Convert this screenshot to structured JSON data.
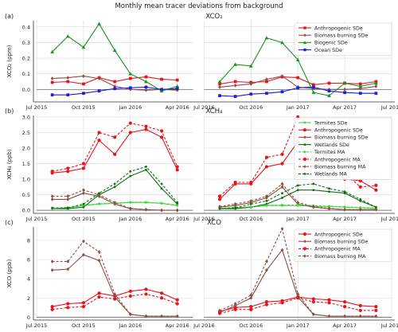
{
  "figure": {
    "title": "Monthly mean tracer deviations from background"
  },
  "chart_data": [
    {
      "type": "line",
      "panel_label": "(a)",
      "title": "XCO₂",
      "ylabel": "XCO₂ (ppm)",
      "ylim": [
        -0.08,
        0.44
      ],
      "yticks": [
        0.0,
        0.1,
        0.2,
        0.3,
        0.4
      ],
      "ytick_labels": [
        "0.0",
        "0.1",
        "0.2",
        "0.3",
        "0.4"
      ],
      "xaxis_segments": [
        {
          "range": [
            "2015-07",
            "2016-05"
          ],
          "ticks": [
            "Jul 2015",
            "Oct 2015",
            "Jan 2016",
            "Apr 2016"
          ]
        },
        {
          "range": [
            "2016-07",
            "2017-07"
          ],
          "ticks": [
            "Jul 2016",
            "Oct 2016",
            "Jan 2017",
            "Apr 2017",
            "Jul 2017"
          ]
        }
      ],
      "grid": true,
      "legend_position": "upper-right",
      "series": [
        {
          "name": "Anthropogenic SDe",
          "color": "#e8141c",
          "marker": "square",
          "dashed": false,
          "x": [
            "2015-08",
            "2015-09",
            "2015-10",
            "2015-11",
            "2015-12",
            "2016-01",
            "2016-02",
            "2016-03",
            "2016-04",
            "2016-08",
            "2016-09",
            "2016-10",
            "2016-11",
            "2016-12",
            "2017-01",
            "2017-02",
            "2017-03",
            "2017-04",
            "2017-05",
            "2017-06"
          ],
          "values": [
            0.045,
            0.05,
            0.035,
            0.075,
            0.05,
            0.07,
            0.08,
            0.065,
            0.06,
            0.035,
            0.05,
            0.045,
            0.05,
            0.08,
            0.075,
            0.03,
            0.04,
            0.04,
            0.035,
            0.05
          ]
        },
        {
          "name": "Biomass burning SDe",
          "color": "#8b4f43",
          "marker": "diamond",
          "dashed": false,
          "x": [
            "2015-08",
            "2015-09",
            "2015-10",
            "2015-11",
            "2015-12",
            "2016-01",
            "2016-02",
            "2016-03",
            "2016-04",
            "2016-08",
            "2016-09",
            "2016-10",
            "2016-11",
            "2016-12",
            "2017-01",
            "2017-02",
            "2017-03",
            "2017-04",
            "2017-05",
            "2017-06"
          ],
          "values": [
            0.07,
            0.075,
            0.085,
            0.07,
            0.02,
            0.0,
            -0.005,
            0.0,
            -0.005,
            0.015,
            0.025,
            0.035,
            0.065,
            0.085,
            0.015,
            0.005,
            0.0,
            0.0,
            0.005,
            0.02
          ]
        },
        {
          "name": "Biogenic SDe",
          "color": "#16961c",
          "marker": "triangle",
          "dashed": false,
          "x": [
            "2015-08",
            "2015-09",
            "2015-10",
            "2015-11",
            "2015-12",
            "2016-01",
            "2016-02",
            "2016-03",
            "2016-04",
            "2016-08",
            "2016-09",
            "2016-10",
            "2016-11",
            "2016-12",
            "2017-01",
            "2017-02",
            "2017-03",
            "2017-04",
            "2017-05",
            "2017-06"
          ],
          "values": [
            0.24,
            0.34,
            0.27,
            0.42,
            0.25,
            0.1,
            0.05,
            -0.01,
            0.02,
            0.05,
            0.16,
            0.15,
            0.33,
            0.3,
            0.19,
            -0.02,
            -0.04,
            0.04,
            0.02,
            0.04
          ]
        },
        {
          "name": "Ocean SDe",
          "color": "#1e1ed8",
          "marker": "square",
          "dashed": false,
          "x": [
            "2015-08",
            "2015-09",
            "2015-10",
            "2015-11",
            "2015-12",
            "2016-01",
            "2016-02",
            "2016-03",
            "2016-04",
            "2016-08",
            "2016-09",
            "2016-10",
            "2016-11",
            "2016-12",
            "2017-01",
            "2017-02",
            "2017-03",
            "2017-04",
            "2017-05",
            "2017-06"
          ],
          "values": [
            -0.035,
            -0.035,
            -0.025,
            -0.01,
            0.005,
            0.01,
            0.015,
            0.0,
            0.005,
            -0.04,
            -0.045,
            -0.03,
            -0.025,
            -0.015,
            0.01,
            0.015,
            -0.01,
            -0.02,
            -0.025,
            -0.025
          ]
        }
      ]
    },
    {
      "type": "line",
      "panel_label": "(b)",
      "title": "XCH₄",
      "ylabel": "XCH₄ (ppb)",
      "ylim": [
        -0.1,
        3.05
      ],
      "yticks": [
        0.0,
        0.5,
        1.0,
        1.5,
        2.0,
        2.5,
        3.0
      ],
      "ytick_labels": [
        "0.0",
        "0.5",
        "1.0",
        "1.5",
        "2.0",
        "2.5",
        "3.0"
      ],
      "xaxis_segments": [
        {
          "range": [
            "2015-07",
            "2016-05"
          ],
          "ticks": [
            "Jul 2015",
            "Oct 2015",
            "Jan 2016",
            "Apr 2016"
          ]
        },
        {
          "range": [
            "2016-07",
            "2017-07"
          ],
          "ticks": [
            "Jul 2016",
            "Oct 2016",
            "Jan 2017",
            "Apr 2017",
            "Jul 2017"
          ]
        }
      ],
      "grid": true,
      "legend_position": "upper-right",
      "series": [
        {
          "name": "Termites SDe",
          "color": "#3fd83f",
          "marker": "dot",
          "dashed": false,
          "x": [
            "2015-08",
            "2015-09",
            "2015-10",
            "2015-11",
            "2015-12",
            "2016-01",
            "2016-02",
            "2016-03",
            "2016-04",
            "2016-08",
            "2016-09",
            "2016-10",
            "2016-11",
            "2016-12",
            "2017-01",
            "2017-02",
            "2017-03",
            "2017-04",
            "2017-05",
            "2017-06"
          ],
          "values": [
            0.05,
            0.08,
            0.15,
            0.2,
            0.22,
            0.25,
            0.25,
            0.22,
            0.15,
            0.05,
            0.08,
            0.1,
            0.15,
            0.15,
            0.15,
            0.13,
            0.12,
            0.1,
            0.08,
            0.06
          ]
        },
        {
          "name": "Anthropogenic SDe",
          "color": "#e8141c",
          "marker": "circle",
          "dashed": false,
          "x": [
            "2015-08",
            "2015-09",
            "2015-10",
            "2015-11",
            "2015-12",
            "2016-01",
            "2016-02",
            "2016-03",
            "2016-04",
            "2016-08",
            "2016-09",
            "2016-10",
            "2016-11",
            "2016-12",
            "2017-01",
            "2017-02",
            "2017-03",
            "2017-04",
            "2017-05",
            "2017-06"
          ],
          "values": [
            1.2,
            1.25,
            1.35,
            2.25,
            1.8,
            2.5,
            2.6,
            2.35,
            1.3,
            0.35,
            0.85,
            0.85,
            1.4,
            1.5,
            2.2,
            1.4,
            1.35,
            1.0,
            0.95,
            0.65
          ]
        },
        {
          "name": "Biomass burning SDe",
          "color": "#8b4f43",
          "marker": "diamond",
          "dashed": false,
          "x": [
            "2015-08",
            "2015-09",
            "2015-10",
            "2015-11",
            "2015-12",
            "2016-01",
            "2016-02",
            "2016-03",
            "2016-04",
            "2016-08",
            "2016-09",
            "2016-10",
            "2016-11",
            "2016-12",
            "2017-01",
            "2017-02",
            "2017-03",
            "2017-04",
            "2017-05",
            "2017-06"
          ],
          "values": [
            0.35,
            0.35,
            0.55,
            0.45,
            0.2,
            0.05,
            0.02,
            0.0,
            0.0,
            0.1,
            0.15,
            0.25,
            0.4,
            0.75,
            0.2,
            0.1,
            0.05,
            0.02,
            0.02,
            0.02
          ]
        },
        {
          "name": "Wetlands SDe",
          "color": "#0e6e12",
          "marker": "dot",
          "dashed": false,
          "x": [
            "2015-08",
            "2015-09",
            "2015-10",
            "2015-11",
            "2015-12",
            "2016-01",
            "2016-02",
            "2016-03",
            "2016-04",
            "2016-08",
            "2016-09",
            "2016-10",
            "2016-11",
            "2016-12",
            "2017-01",
            "2017-02",
            "2017-03",
            "2017-04",
            "2017-05",
            "2017-06"
          ],
          "values": [
            0.05,
            0.05,
            0.1,
            0.5,
            0.75,
            1.1,
            1.3,
            0.7,
            0.2,
            0.05,
            0.05,
            0.1,
            0.2,
            0.4,
            0.65,
            0.65,
            0.6,
            0.55,
            0.3,
            0.1
          ]
        },
        {
          "name": "Termites MA",
          "color": "#3fd83f",
          "marker": "dot",
          "dashed": true,
          "x": [
            "2015-08",
            "2015-09",
            "2015-10",
            "2015-11",
            "2015-12",
            "2016-01",
            "2016-02",
            "2016-03",
            "2016-04",
            "2016-08",
            "2016-09",
            "2016-10",
            "2016-11",
            "2016-12",
            "2017-01",
            "2017-02",
            "2017-03",
            "2017-04",
            "2017-05",
            "2017-06"
          ],
          "values": [
            0.06,
            0.09,
            0.16,
            0.21,
            0.23,
            0.26,
            0.26,
            0.23,
            0.16,
            0.06,
            0.09,
            0.11,
            0.16,
            0.17,
            0.17,
            0.15,
            0.13,
            0.11,
            0.09,
            0.07
          ]
        },
        {
          "name": "Anthropogenic MA",
          "color": "#e8141c",
          "marker": "circle",
          "dashed": true,
          "x": [
            "2015-08",
            "2015-09",
            "2015-10",
            "2015-11",
            "2015-12",
            "2016-01",
            "2016-02",
            "2016-03",
            "2016-04",
            "2016-08",
            "2016-09",
            "2016-10",
            "2016-11",
            "2016-12",
            "2017-01",
            "2017-02",
            "2017-03",
            "2017-04",
            "2017-05",
            "2017-06"
          ],
          "values": [
            1.25,
            1.35,
            1.5,
            2.5,
            2.35,
            2.8,
            2.7,
            2.55,
            1.4,
            0.45,
            0.9,
            0.9,
            1.7,
            1.8,
            3.0,
            1.7,
            1.65,
            1.2,
            0.75,
            0.8
          ]
        },
        {
          "name": "Biomass burning MA",
          "color": "#8b4f43",
          "marker": "diamond",
          "dashed": true,
          "x": [
            "2015-08",
            "2015-09",
            "2015-10",
            "2015-11",
            "2015-12",
            "2016-01",
            "2016-02",
            "2016-03",
            "2016-04",
            "2016-08",
            "2016-09",
            "2016-10",
            "2016-11",
            "2016-12",
            "2017-01",
            "2017-02",
            "2017-03",
            "2017-04",
            "2017-05",
            "2017-06"
          ],
          "values": [
            0.45,
            0.45,
            0.65,
            0.5,
            0.25,
            0.06,
            0.02,
            0.0,
            0.0,
            0.12,
            0.2,
            0.3,
            0.45,
            0.85,
            0.25,
            0.12,
            0.06,
            0.02,
            0.02,
            0.02
          ]
        },
        {
          "name": "Wetlands MA",
          "color": "#0e6e12",
          "marker": "dot",
          "dashed": true,
          "x": [
            "2015-08",
            "2015-09",
            "2015-10",
            "2015-11",
            "2015-12",
            "2016-01",
            "2016-02",
            "2016-03",
            "2016-04",
            "2016-08",
            "2016-09",
            "2016-10",
            "2016-11",
            "2016-12",
            "2017-01",
            "2017-02",
            "2017-03",
            "2017-04",
            "2017-05",
            "2017-06"
          ],
          "values": [
            0.08,
            0.08,
            0.2,
            0.55,
            0.85,
            1.25,
            1.4,
            0.85,
            0.25,
            0.05,
            0.08,
            0.2,
            0.3,
            0.55,
            0.8,
            0.85,
            0.7,
            0.6,
            0.35,
            0.1
          ]
        }
      ]
    },
    {
      "type": "line",
      "panel_label": "(c)",
      "title": "XCO",
      "ylabel": "XCO (ppb)",
      "ylim": [
        -0.3,
        9.4
      ],
      "yticks": [
        0,
        2,
        4,
        6,
        8
      ],
      "ytick_labels": [
        "0",
        "2",
        "4",
        "6",
        "8"
      ],
      "xaxis_segments": [
        {
          "range": [
            "2015-07",
            "2016-05"
          ],
          "ticks": [
            "Jul 2015",
            "Oct 2015",
            "Jan 2016",
            "Apr 2016"
          ]
        },
        {
          "range": [
            "2016-07",
            "2017-07"
          ],
          "ticks": [
            "Jul 2016",
            "Oct 2016",
            "Jan 2017",
            "Apr 2017",
            "Jul 2017"
          ]
        }
      ],
      "grid": true,
      "legend_position": "upper-right",
      "series": [
        {
          "name": "Anthropogenic SDe",
          "color": "#e8141c",
          "marker": "circle",
          "dashed": false,
          "x": [
            "2015-08",
            "2015-09",
            "2015-10",
            "2015-11",
            "2015-12",
            "2016-01",
            "2016-02",
            "2016-03",
            "2016-04",
            "2016-08",
            "2016-09",
            "2016-10",
            "2016-11",
            "2016-12",
            "2017-01",
            "2017-02",
            "2017-03",
            "2017-04",
            "2017-05",
            "2017-06"
          ],
          "values": [
            1.1,
            1.4,
            1.5,
            2.5,
            2.2,
            2.7,
            2.9,
            2.5,
            1.8,
            0.6,
            1.0,
            1.1,
            1.6,
            1.7,
            2.1,
            1.9,
            1.8,
            1.6,
            1.2,
            1.1
          ]
        },
        {
          "name": "Biomass burning SDe",
          "color": "#8b4f43",
          "marker": "diamond",
          "dashed": false,
          "x": [
            "2015-08",
            "2015-09",
            "2015-10",
            "2015-11",
            "2015-12",
            "2016-01",
            "2016-02",
            "2016-03",
            "2016-04",
            "2016-08",
            "2016-09",
            "2016-10",
            "2016-11",
            "2016-12",
            "2017-01",
            "2017-02",
            "2017-03",
            "2017-04",
            "2017-05",
            "2017-06"
          ],
          "values": [
            4.9,
            5.0,
            6.5,
            5.9,
            2.1,
            0.3,
            0.1,
            0.1,
            0.1,
            0.5,
            1.2,
            2.0,
            4.9,
            7.0,
            2.1,
            0.3,
            0.1,
            0.1,
            0.1,
            0.1
          ]
        },
        {
          "name": "Anthropogenic MA",
          "color": "#e8141c",
          "marker": "circle",
          "dashed": true,
          "x": [
            "2015-08",
            "2015-09",
            "2015-10",
            "2015-11",
            "2015-12",
            "2016-01",
            "2016-02",
            "2016-03",
            "2016-04",
            "2016-08",
            "2016-09",
            "2016-10",
            "2016-11",
            "2016-12",
            "2017-01",
            "2017-02",
            "2017-03",
            "2017-04",
            "2017-05",
            "2017-06"
          ],
          "values": [
            0.8,
            1.0,
            1.1,
            2.1,
            1.9,
            2.2,
            2.4,
            2.0,
            1.4,
            0.4,
            0.8,
            0.8,
            1.3,
            1.5,
            2.0,
            1.6,
            1.5,
            1.1,
            0.7,
            0.7
          ]
        },
        {
          "name": "Biomass burning MA",
          "color": "#8b4f43",
          "marker": "diamond",
          "dashed": true,
          "x": [
            "2015-08",
            "2015-09",
            "2015-10",
            "2015-11",
            "2015-12",
            "2016-01",
            "2016-02",
            "2016-03",
            "2016-04",
            "2016-08",
            "2016-09",
            "2016-10",
            "2016-11",
            "2016-12",
            "2017-01",
            "2017-02",
            "2017-03",
            "2017-04",
            "2017-05",
            "2017-06"
          ],
          "values": [
            5.8,
            5.8,
            7.9,
            6.8,
            2.4,
            0.3,
            0.1,
            0.1,
            0.1,
            0.7,
            1.4,
            2.3,
            5.8,
            9.2,
            2.4,
            0.3,
            0.1,
            0.1,
            0.1,
            0.1
          ]
        }
      ]
    }
  ]
}
